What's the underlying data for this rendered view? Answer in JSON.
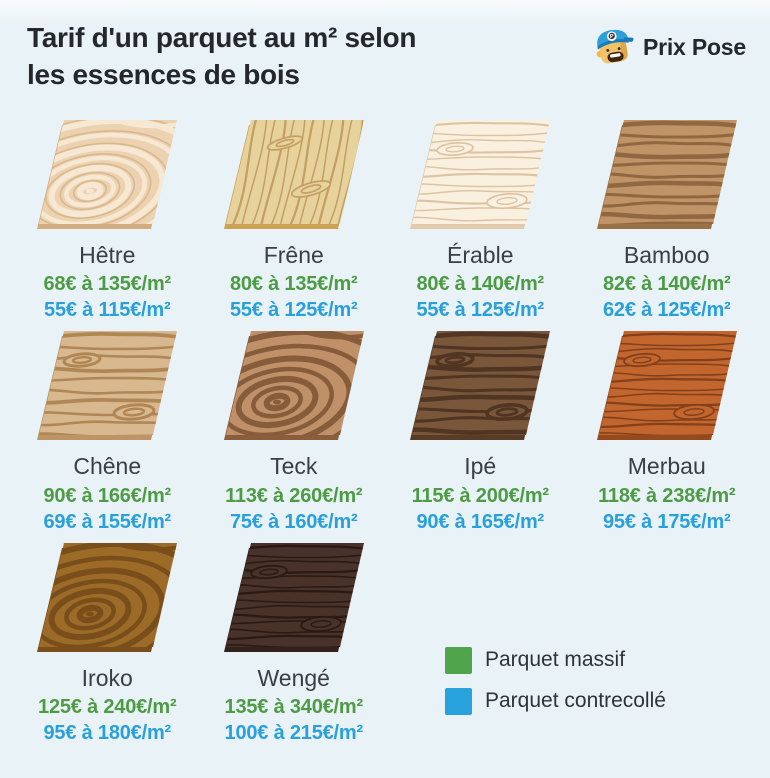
{
  "page": {
    "title_line1": "Tarif d'un parquet au m² selon",
    "title_line2": "les essences de bois",
    "background": "#e9f2f6",
    "background_top": "#f7fbfd"
  },
  "brand": {
    "name": "Prix Pose"
  },
  "colors": {
    "title": "#24272c",
    "label": "#3a3e45",
    "massif_text": "#4e9b45",
    "contrecolle_text": "#28a0dc"
  },
  "legend": {
    "items": [
      {
        "label": "Parquet massif",
        "color": "#4fa44c"
      },
      {
        "label": "Parquet contrecollé",
        "color": "#27a2dc"
      }
    ]
  },
  "woods": [
    {
      "name": "Hêtre",
      "massif": "68€ à 135€/m²",
      "contrecolle": "55€ à 115€/m²",
      "pattern": "swirl",
      "base": "#ecd2b0",
      "grain": "#f6e8d2",
      "grain2": "#d9b88e",
      "edge": "#d3ad7f",
      "lw": 6,
      "gap": 0,
      "knots": false
    },
    {
      "name": "Frêne",
      "massif": "80€ à 135€/m²",
      "contrecolle": "55€ à 125€/m²",
      "pattern": "vlines",
      "base": "#e8d29b",
      "grain": "#c2a065",
      "edge": "#cda254",
      "lw": 1.7,
      "gap": 9.5,
      "knots": true
    },
    {
      "name": "Érable",
      "massif": "80€ à 140€/m²",
      "contrecolle": "55€ à 125€/m²",
      "pattern": "hlines",
      "base": "#faf0e0",
      "grain": "#ddc3a2",
      "edge": "#e2cbab",
      "lw": 1.7,
      "gap": 8.5,
      "knots": true
    },
    {
      "name": "Bamboo",
      "massif": "82€ à 140€/m²",
      "contrecolle": "62€ à 125€/m²",
      "pattern": "hlines",
      "base": "#c09467",
      "grain": "#8f6740",
      "edge": "#9a7045",
      "lw": 3.6,
      "gap": 10,
      "knots": false
    },
    {
      "name": "Chêne",
      "massif": "90€ à 166€/m²",
      "contrecolle": "69€ à 155€/m²",
      "pattern": "hlines",
      "base": "#d8b88f",
      "grain": "#b08655",
      "edge": "#bd9466",
      "lw": 3,
      "gap": 11,
      "knots": true
    },
    {
      "name": "Teck",
      "massif": "113€ à 260€/m²",
      "contrecolle": "75€ à 160€/m²",
      "pattern": "swirl",
      "base": "#c09068",
      "grain": "#875c3b",
      "edge": "#8a5e3c",
      "lw": 6,
      "gap": 0,
      "knots": false
    },
    {
      "name": "Ipé",
      "massif": "115€ à 200€/m²",
      "contrecolle": "90€ à 165€/m²",
      "pattern": "hlines",
      "base": "#7a573a",
      "grain": "#503522",
      "edge": "#583c26",
      "lw": 3.6,
      "gap": 10.5,
      "knots": true
    },
    {
      "name": "Merbau",
      "massif": "118€ à 238€/m²",
      "contrecolle": "95€ à 175€/m²",
      "pattern": "hlines",
      "base": "#c2662e",
      "grain": "#83401b",
      "edge": "#94491f",
      "lw": 1.8,
      "gap": 7.5,
      "knots": true
    },
    {
      "name": "Iroko",
      "massif": "125€ à 240€/m²",
      "contrecolle": "95€ à 180€/m²",
      "pattern": "swirl",
      "base": "#9d6b28",
      "grain": "#7a4e1a",
      "edge": "#7b4f1c",
      "lw": 6,
      "gap": 0,
      "knots": false
    },
    {
      "name": "Wengé",
      "massif": "135€ à 340€/m²",
      "contrecolle": "100€ à 215€/m²",
      "pattern": "hlines",
      "base": "#48322a",
      "grain": "#2a1a12",
      "edge": "#33221b",
      "lw": 1.8,
      "gap": 7.5,
      "knots": true
    }
  ],
  "chart_data": {
    "type": "table",
    "title": "Tarif d'un parquet au m² selon les essences de bois",
    "unit": "€/m²",
    "categories": [
      "Hêtre",
      "Frêne",
      "Érable",
      "Bamboo",
      "Chêne",
      "Teck",
      "Ipé",
      "Merbau",
      "Iroko",
      "Wengé"
    ],
    "series": [
      {
        "name": "Parquet massif",
        "ranges": [
          [
            68,
            135
          ],
          [
            80,
            135
          ],
          [
            80,
            140
          ],
          [
            82,
            140
          ],
          [
            90,
            166
          ],
          [
            113,
            260
          ],
          [
            115,
            200
          ],
          [
            118,
            238
          ],
          [
            125,
            240
          ],
          [
            135,
            340
          ]
        ]
      },
      {
        "name": "Parquet contrecollé",
        "ranges": [
          [
            55,
            115
          ],
          [
            55,
            125
          ],
          [
            55,
            125
          ],
          [
            62,
            125
          ],
          [
            69,
            155
          ],
          [
            75,
            160
          ],
          [
            90,
            165
          ],
          [
            95,
            175
          ],
          [
            95,
            180
          ],
          [
            100,
            215
          ]
        ]
      }
    ],
    "legend": [
      "Parquet massif",
      "Parquet contrecollé"
    ],
    "legend_position": "bottom-right"
  }
}
